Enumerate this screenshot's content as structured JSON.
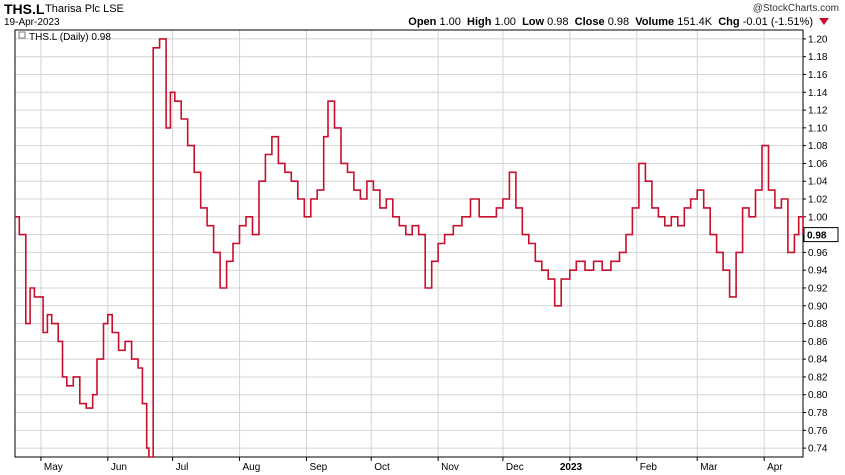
{
  "header": {
    "symbol": "THS.L",
    "company": "Tharisa Plc",
    "exchange": "LSE",
    "date": "19-Apr-2023",
    "copyright": "@StockCharts.com",
    "open_label": "Open",
    "open": "1.00",
    "high_label": "High",
    "high": "1.00",
    "low_label": "Low",
    "low": "0.98",
    "close_label": "Close",
    "close": "0.98",
    "volume_label": "Volume",
    "volume": "151.4K",
    "chg_label": "Chg",
    "chg": "-0.01 (-1.51%)"
  },
  "colors": {
    "series": "#c8102e",
    "grid": "#d4d4d4",
    "axis": "#000000"
  },
  "chart_data": {
    "type": "line",
    "legend": "THS.L (Daily) 0.98",
    "last_price_label": "0.98",
    "ylim": [
      0.73,
      1.21
    ],
    "y_ticks": [
      0.74,
      0.76,
      0.78,
      0.8,
      0.82,
      0.84,
      0.86,
      0.88,
      0.9,
      0.92,
      0.94,
      0.96,
      0.98,
      1.0,
      1.02,
      1.04,
      1.06,
      1.08,
      1.1,
      1.12,
      1.14,
      1.16,
      1.18,
      1.2
    ],
    "x_ticks": [
      {
        "label": "May",
        "date": "2022-05-01"
      },
      {
        "label": "Jun",
        "date": "2022-06-01"
      },
      {
        "label": "Jul",
        "date": "2022-07-01"
      },
      {
        "label": "Aug",
        "date": "2022-08-01"
      },
      {
        "label": "Sep",
        "date": "2022-09-01"
      },
      {
        "label": "Oct",
        "date": "2022-10-01"
      },
      {
        "label": "Nov",
        "date": "2022-11-01"
      },
      {
        "label": "Dec",
        "date": "2022-12-01"
      },
      {
        "label": "2023",
        "date": "2023-01-01"
      },
      {
        "label": "Feb",
        "date": "2023-02-01"
      },
      {
        "label": "Mar",
        "date": "2023-03-01"
      },
      {
        "label": "Apr",
        "date": "2023-04-01"
      }
    ],
    "x_range": [
      "2022-04-19",
      "2023-04-19"
    ],
    "series": [
      {
        "points": [
          [
            "2022-04-19",
            1.0
          ],
          [
            "2022-04-21",
            0.98
          ],
          [
            "2022-04-24",
            0.88
          ],
          [
            "2022-04-26",
            0.92
          ],
          [
            "2022-04-28",
            0.91
          ],
          [
            "2022-05-02",
            0.87
          ],
          [
            "2022-05-04",
            0.89
          ],
          [
            "2022-05-06",
            0.88
          ],
          [
            "2022-05-09",
            0.86
          ],
          [
            "2022-05-11",
            0.82
          ],
          [
            "2022-05-13",
            0.81
          ],
          [
            "2022-05-16",
            0.82
          ],
          [
            "2022-05-19",
            0.79
          ],
          [
            "2022-05-22",
            0.785
          ],
          [
            "2022-05-25",
            0.8
          ],
          [
            "2022-05-27",
            0.84
          ],
          [
            "2022-05-30",
            0.88
          ],
          [
            "2022-06-01",
            0.89
          ],
          [
            "2022-06-03",
            0.87
          ],
          [
            "2022-06-06",
            0.85
          ],
          [
            "2022-06-09",
            0.86
          ],
          [
            "2022-06-12",
            0.84
          ],
          [
            "2022-06-15",
            0.83
          ],
          [
            "2022-06-17",
            0.79
          ],
          [
            "2022-06-19",
            0.74
          ],
          [
            "2022-06-20",
            0.73
          ],
          [
            "2022-06-22",
            1.19
          ],
          [
            "2022-06-25",
            1.2
          ],
          [
            "2022-06-28",
            1.1
          ],
          [
            "2022-06-30",
            1.14
          ],
          [
            "2022-07-02",
            1.13
          ],
          [
            "2022-07-05",
            1.11
          ],
          [
            "2022-07-08",
            1.08
          ],
          [
            "2022-07-11",
            1.05
          ],
          [
            "2022-07-14",
            1.01
          ],
          [
            "2022-07-17",
            0.99
          ],
          [
            "2022-07-20",
            0.96
          ],
          [
            "2022-07-23",
            0.92
          ],
          [
            "2022-07-26",
            0.95
          ],
          [
            "2022-07-29",
            0.97
          ],
          [
            "2022-08-01",
            0.99
          ],
          [
            "2022-08-04",
            1.0
          ],
          [
            "2022-08-07",
            0.98
          ],
          [
            "2022-08-10",
            1.04
          ],
          [
            "2022-08-13",
            1.07
          ],
          [
            "2022-08-16",
            1.09
          ],
          [
            "2022-08-19",
            1.06
          ],
          [
            "2022-08-22",
            1.05
          ],
          [
            "2022-08-25",
            1.04
          ],
          [
            "2022-08-28",
            1.02
          ],
          [
            "2022-08-31",
            1.0
          ],
          [
            "2022-09-03",
            1.02
          ],
          [
            "2022-09-06",
            1.03
          ],
          [
            "2022-09-09",
            1.09
          ],
          [
            "2022-09-11",
            1.13
          ],
          [
            "2022-09-14",
            1.1
          ],
          [
            "2022-09-17",
            1.06
          ],
          [
            "2022-09-20",
            1.05
          ],
          [
            "2022-09-23",
            1.03
          ],
          [
            "2022-09-26",
            1.02
          ],
          [
            "2022-09-29",
            1.04
          ],
          [
            "2022-10-02",
            1.03
          ],
          [
            "2022-10-05",
            1.01
          ],
          [
            "2022-10-08",
            1.02
          ],
          [
            "2022-10-11",
            1.0
          ],
          [
            "2022-10-14",
            0.99
          ],
          [
            "2022-10-17",
            0.98
          ],
          [
            "2022-10-20",
            0.99
          ],
          [
            "2022-10-23",
            0.98
          ],
          [
            "2022-10-26",
            0.92
          ],
          [
            "2022-10-29",
            0.95
          ],
          [
            "2022-11-01",
            0.97
          ],
          [
            "2022-11-04",
            0.98
          ],
          [
            "2022-11-08",
            0.99
          ],
          [
            "2022-11-12",
            1.0
          ],
          [
            "2022-11-16",
            1.02
          ],
          [
            "2022-11-20",
            1.0
          ],
          [
            "2022-11-24",
            1.0
          ],
          [
            "2022-11-28",
            1.01
          ],
          [
            "2022-12-01",
            1.02
          ],
          [
            "2022-12-04",
            1.05
          ],
          [
            "2022-12-07",
            1.01
          ],
          [
            "2022-12-10",
            0.98
          ],
          [
            "2022-12-13",
            0.97
          ],
          [
            "2022-12-16",
            0.95
          ],
          [
            "2022-12-19",
            0.94
          ],
          [
            "2022-12-22",
            0.93
          ],
          [
            "2022-12-25",
            0.9
          ],
          [
            "2022-12-28",
            0.93
          ],
          [
            "2023-01-01",
            0.94
          ],
          [
            "2023-01-04",
            0.95
          ],
          [
            "2023-01-08",
            0.94
          ],
          [
            "2023-01-12",
            0.95
          ],
          [
            "2023-01-16",
            0.94
          ],
          [
            "2023-01-20",
            0.95
          ],
          [
            "2023-01-24",
            0.96
          ],
          [
            "2023-01-27",
            0.98
          ],
          [
            "2023-01-30",
            1.01
          ],
          [
            "2023-02-02",
            1.06
          ],
          [
            "2023-02-05",
            1.04
          ],
          [
            "2023-02-08",
            1.01
          ],
          [
            "2023-02-11",
            1.0
          ],
          [
            "2023-02-14",
            0.99
          ],
          [
            "2023-02-17",
            1.0
          ],
          [
            "2023-02-20",
            0.99
          ],
          [
            "2023-02-23",
            1.01
          ],
          [
            "2023-02-26",
            1.02
          ],
          [
            "2023-03-01",
            1.03
          ],
          [
            "2023-03-04",
            1.01
          ],
          [
            "2023-03-07",
            0.98
          ],
          [
            "2023-03-10",
            0.96
          ],
          [
            "2023-03-13",
            0.94
          ],
          [
            "2023-03-16",
            0.91
          ],
          [
            "2023-03-19",
            0.96
          ],
          [
            "2023-03-22",
            1.01
          ],
          [
            "2023-03-25",
            1.0
          ],
          [
            "2023-03-28",
            1.03
          ],
          [
            "2023-03-31",
            1.08
          ],
          [
            "2023-04-03",
            1.03
          ],
          [
            "2023-04-06",
            1.01
          ],
          [
            "2023-04-09",
            1.02
          ],
          [
            "2023-04-12",
            0.96
          ],
          [
            "2023-04-15",
            0.98
          ],
          [
            "2023-04-17",
            1.0
          ],
          [
            "2023-04-19",
            0.98
          ]
        ]
      }
    ]
  }
}
